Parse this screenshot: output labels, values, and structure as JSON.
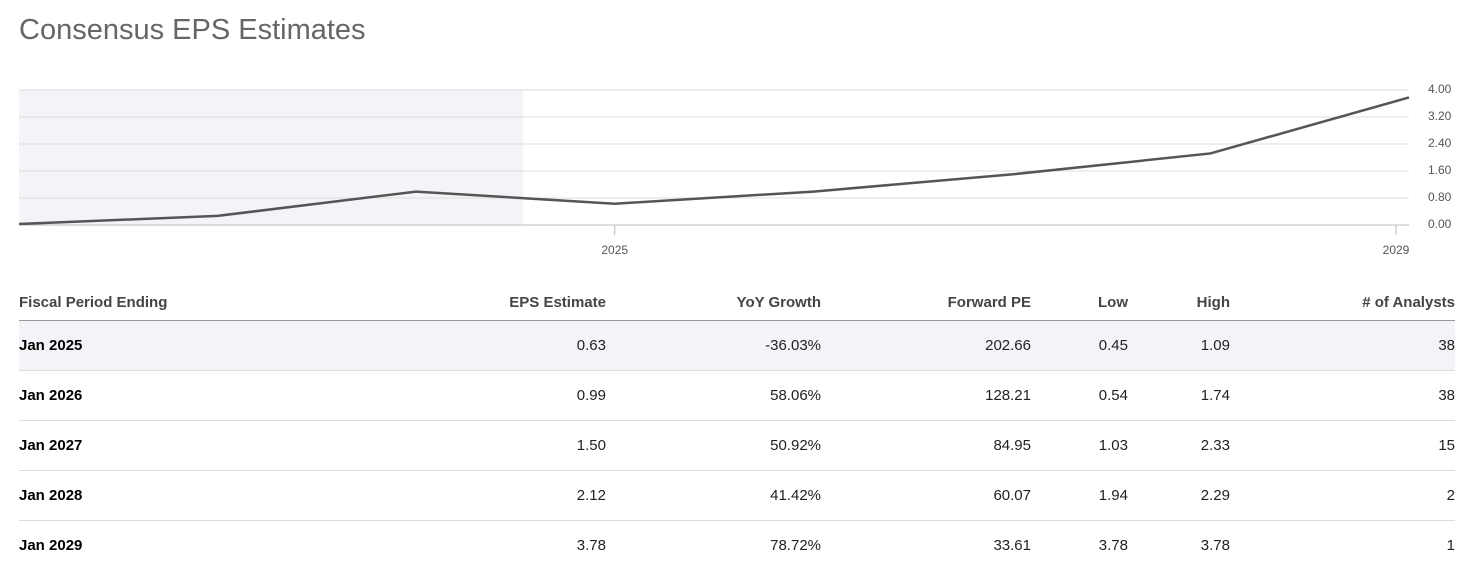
{
  "title": "Consensus EPS Estimates",
  "chart_data": {
    "type": "line",
    "categories": [
      null,
      null,
      null,
      "2025",
      null,
      null,
      null,
      "2029"
    ],
    "values": [
      0.03,
      0.27,
      0.99,
      0.63,
      0.99,
      1.5,
      2.12,
      3.78
    ],
    "color": "#555555",
    "ylim": [
      0,
      4
    ],
    "yticks": [
      {
        "value": 0,
        "label": "0.00"
      },
      {
        "value": 0.8,
        "label": "0.80"
      },
      {
        "value": 1.6,
        "label": "1.60"
      },
      {
        "value": 2.4,
        "label": "2.40"
      },
      {
        "value": 3.2,
        "label": "3.20"
      },
      {
        "value": 4,
        "label": "4.00"
      }
    ],
    "grid": true
  },
  "table": {
    "columns": [
      "Fiscal Period Ending",
      "EPS Estimate",
      "YoY Growth",
      "Forward PE",
      "Low",
      "High",
      "# of Analysts"
    ],
    "rows": [
      [
        "Jan 2025",
        "0.63",
        "-36.03%",
        "202.66",
        "0.45",
        "1.09",
        "38"
      ],
      [
        "Jan 2026",
        "0.99",
        "58.06%",
        "128.21",
        "0.54",
        "1.74",
        "38"
      ],
      [
        "Jan 2027",
        "1.50",
        "50.92%",
        "84.95",
        "1.03",
        "2.33",
        "15"
      ],
      [
        "Jan 2028",
        "2.12",
        "41.42%",
        "60.07",
        "1.94",
        "2.29",
        "2"
      ],
      [
        "Jan 2029",
        "3.78",
        "78.72%",
        "33.61",
        "3.78",
        "3.78",
        "1"
      ]
    ]
  }
}
